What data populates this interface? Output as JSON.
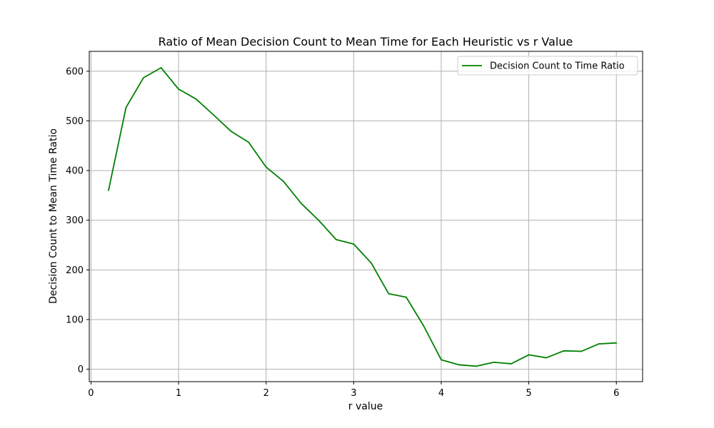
{
  "chart_data": {
    "type": "line",
    "title": "Ratio of Mean Decision Count to Mean Time for Each Heuristic vs r Value",
    "xlabel": "r value",
    "ylabel": "Decision Count to Mean Time Ratio",
    "xlim": [
      -0.02,
      6.3
    ],
    "ylim": [
      -25,
      640
    ],
    "xticks": [
      0,
      1,
      2,
      3,
      4,
      5,
      6
    ],
    "yticks": [
      0,
      100,
      200,
      300,
      400,
      500,
      600
    ],
    "grid": true,
    "legend_position": "top-right",
    "series": [
      {
        "name": "Decision Count to Time Ratio",
        "color": "#008000",
        "x": [
          0.2,
          0.4,
          0.6,
          0.8,
          1.0,
          1.2,
          1.4,
          1.6,
          1.8,
          2.0,
          2.2,
          2.4,
          2.6,
          2.8,
          3.0,
          3.2,
          3.4,
          3.6,
          3.8,
          4.0,
          4.2,
          4.4,
          4.6,
          4.8,
          5.0,
          5.2,
          5.4,
          5.6,
          5.8,
          6.0
        ],
        "y": [
          360,
          527,
          587,
          607,
          564,
          544,
          512,
          479,
          457,
          407,
          378,
          334,
          300,
          261,
          252,
          214,
          152,
          145,
          87,
          19,
          9,
          6,
          14,
          11,
          29,
          23,
          37,
          36,
          51,
          53
        ]
      }
    ]
  }
}
